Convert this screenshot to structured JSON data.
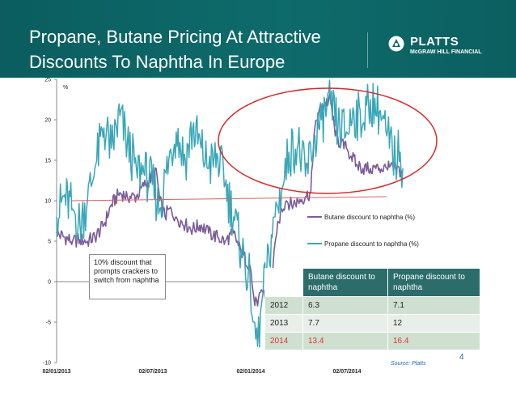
{
  "header": {
    "title": "Propane, Butane Pricing At Attractive Discounts To Naphtha In Europe",
    "logo_name": "PLATTS",
    "logo_sub": "McGRAW HILL FINANCIAL"
  },
  "colors": {
    "banner": "#0c6163",
    "butane": "#7b5b9a",
    "propane": "#3aa7b9",
    "threshold": "#e06060",
    "ellipse": "#d42a2a",
    "highlight_text": "#e53030"
  },
  "chart_data": {
    "type": "line",
    "ylabel": "%",
    "ylim": [
      -10,
      25
    ],
    "yticks": [
      "25",
      "20",
      "15",
      "10",
      "5",
      "0",
      "-5",
      "-10"
    ],
    "xlabels": [
      "02/01/2013",
      "02/07/2013",
      "02/01/2014",
      "02/07/2014"
    ],
    "x_range": [
      "2013-01-02",
      "2014-10-15"
    ],
    "threshold": {
      "y": 10.0,
      "y_end": 10.5
    },
    "highlight": "ellipse around 2014 data",
    "series": [
      {
        "name": "Butane discount to naphtha (%)",
        "color": "#7b5b9a",
        "points": [
          [
            "2013-01-02",
            6.0
          ],
          [
            "2013-01-16",
            5.5
          ],
          [
            "2013-02-01",
            5.0
          ],
          [
            "2013-02-15",
            5.2
          ],
          [
            "2013-03-01",
            5.0
          ],
          [
            "2013-03-15",
            5.5
          ],
          [
            "2013-04-01",
            7.0
          ],
          [
            "2013-04-15",
            9.5
          ],
          [
            "2013-05-01",
            11.0
          ],
          [
            "2013-05-15",
            10.5
          ],
          [
            "2013-06-01",
            10.5
          ],
          [
            "2013-06-15",
            11.8
          ],
          [
            "2013-07-01",
            13.0
          ],
          [
            "2013-07-08",
            14.0
          ],
          [
            "2013-07-15",
            10.0
          ],
          [
            "2013-07-25",
            8.0
          ],
          [
            "2013-08-01",
            9.0
          ],
          [
            "2013-08-15",
            8.0
          ],
          [
            "2013-09-01",
            7.0
          ],
          [
            "2013-09-15",
            6.5
          ],
          [
            "2013-10-01",
            7.0
          ],
          [
            "2013-10-15",
            6.0
          ],
          [
            "2013-11-01",
            5.5
          ],
          [
            "2013-11-15",
            5.0
          ],
          [
            "2013-12-01",
            6.0
          ],
          [
            "2013-12-15",
            3.5
          ],
          [
            "2014-01-01",
            2.0
          ],
          [
            "2014-01-08",
            -2.0
          ],
          [
            "2014-01-15",
            -3.0
          ],
          [
            "2014-01-22",
            -1.0
          ],
          [
            "2014-02-01",
            -2.0
          ],
          [
            "2014-02-10",
            0.0
          ],
          [
            "2014-02-20",
            6.0
          ],
          [
            "2014-03-01",
            9.0
          ],
          [
            "2014-03-10",
            10.0
          ],
          [
            "2014-03-20",
            9.5
          ],
          [
            "2014-04-01",
            10.0
          ],
          [
            "2014-04-15",
            10.5
          ],
          [
            "2014-04-25",
            11.0
          ],
          [
            "2014-05-01",
            18.0
          ],
          [
            "2014-05-10",
            21.0
          ],
          [
            "2014-05-20",
            22.0
          ],
          [
            "2014-06-01",
            22.5
          ],
          [
            "2014-06-10",
            18.0
          ],
          [
            "2014-06-20",
            17.0
          ],
          [
            "2014-07-01",
            16.5
          ],
          [
            "2014-07-10",
            15.5
          ],
          [
            "2014-07-20",
            14.5
          ],
          [
            "2014-08-01",
            14.0
          ],
          [
            "2014-08-15",
            14.0
          ],
          [
            "2014-09-01",
            14.0
          ],
          [
            "2014-09-15",
            14.0
          ],
          [
            "2014-10-01",
            14.0
          ],
          [
            "2014-10-15",
            13.5
          ]
        ]
      },
      {
        "name": "Propane discount to naphtha (%)",
        "color": "#3aa7b9",
        "points": [
          [
            "2013-01-02",
            8.0
          ],
          [
            "2013-01-16",
            10.5
          ],
          [
            "2013-02-01",
            9.0
          ],
          [
            "2013-02-15",
            7.0
          ],
          [
            "2013-03-01",
            10.0
          ],
          [
            "2013-03-15",
            14.0
          ],
          [
            "2013-04-01",
            19.0
          ],
          [
            "2013-04-15",
            16.5
          ],
          [
            "2013-05-01",
            20.5
          ],
          [
            "2013-05-15",
            17.0
          ],
          [
            "2013-06-01",
            14.0
          ],
          [
            "2013-06-15",
            13.5
          ],
          [
            "2013-07-01",
            12.0
          ],
          [
            "2013-07-15",
            9.0
          ],
          [
            "2013-08-01",
            15.0
          ],
          [
            "2013-08-15",
            18.5
          ],
          [
            "2013-09-01",
            15.0
          ],
          [
            "2013-09-15",
            19.0
          ],
          [
            "2013-10-01",
            16.5
          ],
          [
            "2013-10-15",
            14.0
          ],
          [
            "2013-11-01",
            15.5
          ],
          [
            "2013-11-15",
            12.0
          ],
          [
            "2013-12-01",
            8.0
          ],
          [
            "2013-12-15",
            4.0
          ],
          [
            "2014-01-01",
            0.0
          ],
          [
            "2014-01-08",
            -5.0
          ],
          [
            "2014-01-15",
            -8.0
          ],
          [
            "2014-01-22",
            -3.0
          ],
          [
            "2014-02-01",
            1.0
          ],
          [
            "2014-02-15",
            8.0
          ],
          [
            "2014-03-01",
            11.0
          ],
          [
            "2014-03-15",
            16.0
          ],
          [
            "2014-04-01",
            17.0
          ],
          [
            "2014-04-15",
            13.0
          ],
          [
            "2014-05-01",
            17.5
          ],
          [
            "2014-05-15",
            20.0
          ],
          [
            "2014-06-01",
            22.0
          ],
          [
            "2014-06-15",
            19.0
          ],
          [
            "2014-07-01",
            18.5
          ],
          [
            "2014-07-15",
            21.0
          ],
          [
            "2014-08-01",
            19.5
          ],
          [
            "2014-08-15",
            22.5
          ],
          [
            "2014-09-01",
            21.0
          ],
          [
            "2014-09-15",
            18.0
          ],
          [
            "2014-10-01",
            15.0
          ],
          [
            "2014-10-10",
            16.0
          ],
          [
            "2014-10-15",
            14.0
          ]
        ]
      }
    ]
  },
  "callout": {
    "text": "10% discount that prompts crackers to switch from naphtha"
  },
  "table": {
    "headers": [
      "",
      "Butane discount to naphtha",
      "Propane discount to naphtha"
    ],
    "rows": [
      {
        "year": "2012",
        "butane": "6.3",
        "propane": "7.1"
      },
      {
        "year": "2013",
        "butane": "7.7",
        "propane": "12"
      },
      {
        "year": "2014",
        "butane": "13.4",
        "propane": "16.4"
      }
    ]
  },
  "footer": {
    "source": "Source: Platts",
    "page_number": "4"
  }
}
